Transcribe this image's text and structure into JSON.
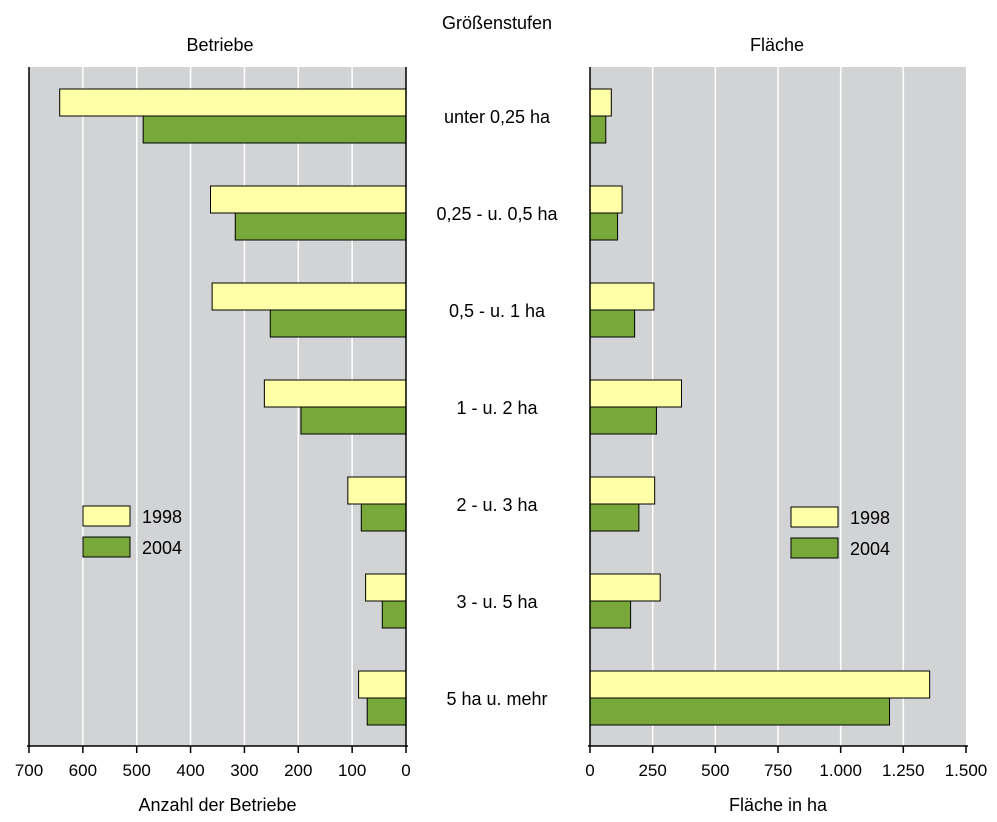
{
  "center_title": "Größenstufen",
  "categories": [
    "unter 0,25 ha",
    "0,25 - u. 0,5 ha",
    "0,5 - u. 1 ha",
    "1 - u. 2 ha",
    "2 - u. 3 ha",
    "3 - u. 5 ha",
    "5  ha  u. mehr"
  ],
  "colors": {
    "1998": "#ffffa8",
    "2004": "#78a83a",
    "plot_bg": "#d2d3d5",
    "grid": "#ffffff"
  },
  "chart_data": [
    {
      "type": "bar",
      "orientation": "horizontal",
      "title": "Betriebe",
      "xlabel": "Anzahl der Betriebe",
      "xlim": [
        0,
        700
      ],
      "x_reversed": true,
      "ticks": [
        "700",
        "600",
        "500",
        "400",
        "300",
        "200",
        "100",
        "0"
      ],
      "tick_values": [
        700,
        600,
        500,
        400,
        300,
        200,
        100,
        0
      ],
      "categories": [
        "unter 0,25 ha",
        "0,25 - u. 0,5 ha",
        "0,5 - u. 1 ha",
        "1 - u. 2 ha",
        "2 - u. 3 ha",
        "3 - u. 5 ha",
        "5  ha  u. mehr"
      ],
      "series": [
        {
          "name": "1998",
          "values": [
            643,
            363,
            360,
            263,
            108,
            75,
            88
          ]
        },
        {
          "name": "2004",
          "values": [
            488,
            317,
            252,
            195,
            83,
            44,
            72
          ]
        }
      ],
      "legend": "lower-left",
      "grid": true
    },
    {
      "type": "bar",
      "orientation": "horizontal",
      "title": "Fläche",
      "xlabel": "Fläche in ha",
      "xlim": [
        0,
        1500
      ],
      "ticks": [
        "0",
        "250",
        "500",
        "750",
        "1.000",
        "1.250",
        "1.500"
      ],
      "tick_values": [
        0,
        250,
        500,
        750,
        1000,
        1250,
        1500
      ],
      "categories": [
        "unter 0,25 ha",
        "0,25 - u. 0,5 ha",
        "0,5 - u. 1 ha",
        "1 - u. 2 ha",
        "2 - u. 3 ha",
        "3 - u. 5 ha",
        "5  ha  u. mehr"
      ],
      "series": [
        {
          "name": "1998",
          "values": [
            85,
            128,
            255,
            365,
            258,
            280,
            1355
          ]
        },
        {
          "name": "2004",
          "values": [
            63,
            110,
            178,
            265,
            195,
            162,
            1195
          ]
        }
      ],
      "legend": "lower-right",
      "grid": true
    }
  ]
}
